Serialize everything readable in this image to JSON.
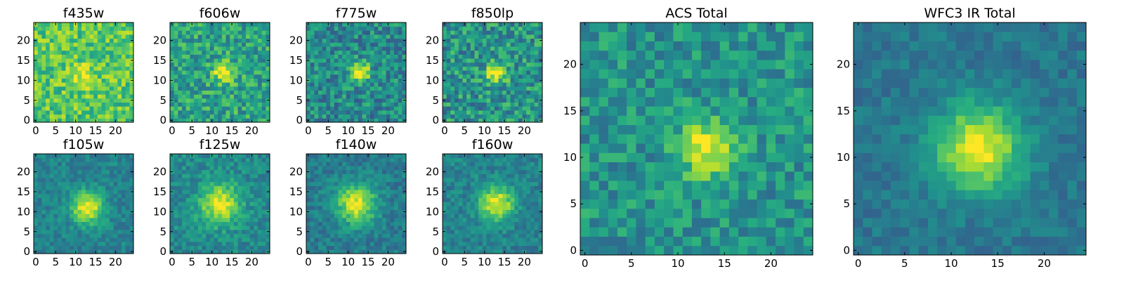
{
  "chart_data": {
    "type": "heatmap",
    "colormap": "viridis",
    "panels": [
      {
        "title": "f435w",
        "grid": 25,
        "xticks": [
          "0",
          "5",
          "10",
          "15",
          "20"
        ],
        "yticks": [
          "0",
          "5",
          "10",
          "15",
          "20"
        ],
        "source_center": [
          12,
          11
        ],
        "source_sigma": 2.2,
        "source_amp": 0.2,
        "background": 0.74,
        "noise": 0.18,
        "seed": 11
      },
      {
        "title": "f606w",
        "grid": 25,
        "xticks": [
          "0",
          "5",
          "10",
          "15",
          "20"
        ],
        "yticks": [
          "0",
          "5",
          "10",
          "15",
          "20"
        ],
        "source_center": [
          13,
          12
        ],
        "source_sigma": 1.8,
        "source_amp": 0.5,
        "background": 0.58,
        "noise": 0.2,
        "seed": 23
      },
      {
        "title": "f775w",
        "grid": 25,
        "xticks": [
          "0",
          "5",
          "10",
          "15",
          "20"
        ],
        "yticks": [
          "0",
          "5",
          "10",
          "15",
          "20"
        ],
        "source_center": [
          13,
          12
        ],
        "source_sigma": 1.7,
        "source_amp": 0.6,
        "background": 0.48,
        "noise": 0.2,
        "seed": 37
      },
      {
        "title": "f850lp",
        "grid": 25,
        "xticks": [
          "0",
          "5",
          "10",
          "15",
          "20"
        ],
        "yticks": [
          "0",
          "5",
          "10",
          "15",
          "20"
        ],
        "source_center": [
          13,
          12
        ],
        "source_sigma": 1.8,
        "source_amp": 0.5,
        "background": 0.52,
        "noise": 0.22,
        "seed": 41
      },
      {
        "title": "f105w",
        "grid": 25,
        "xticks": [
          "0",
          "5",
          "10",
          "15",
          "20"
        ],
        "yticks": [
          "0",
          "5",
          "10",
          "15",
          "20"
        ],
        "source_center": [
          13,
          11
        ],
        "source_sigma": 2.8,
        "source_amp": 0.55,
        "background": 0.45,
        "noise": 0.1,
        "seed": 53
      },
      {
        "title": "f125w",
        "grid": 25,
        "xticks": [
          "0",
          "5",
          "10",
          "15",
          "20"
        ],
        "yticks": [
          "0",
          "5",
          "10",
          "15",
          "20"
        ],
        "source_center": [
          12,
          12
        ],
        "source_sigma": 3.5,
        "source_amp": 0.5,
        "background": 0.48,
        "noise": 0.12,
        "seed": 67
      },
      {
        "title": "f140w",
        "grid": 25,
        "xticks": [
          "0",
          "5",
          "10",
          "15",
          "20"
        ],
        "yticks": [
          "0",
          "5",
          "10",
          "15",
          "20"
        ],
        "source_center": [
          12,
          12
        ],
        "source_sigma": 3.5,
        "source_amp": 0.55,
        "background": 0.42,
        "noise": 0.11,
        "seed": 71
      },
      {
        "title": "f160w",
        "grid": 25,
        "xticks": [
          "0",
          "5",
          "10",
          "15",
          "20"
        ],
        "yticks": [
          "0",
          "5",
          "10",
          "15",
          "20"
        ],
        "source_center": [
          13,
          12
        ],
        "source_sigma": 3.0,
        "source_amp": 0.55,
        "background": 0.45,
        "noise": 0.11,
        "seed": 83
      },
      {
        "title": "ACS Total",
        "grid": 25,
        "xticks": [
          "0",
          "5",
          "10",
          "15",
          "20"
        ],
        "yticks": [
          "0",
          "5",
          "10",
          "15",
          "20"
        ],
        "source_center": [
          13,
          11
        ],
        "source_sigma": 2.0,
        "source_amp": 0.5,
        "background": 0.52,
        "noise": 0.16,
        "seed": 97
      },
      {
        "title": "WFC3 IR Total",
        "grid": 25,
        "xticks": [
          "0",
          "5",
          "10",
          "15",
          "20"
        ],
        "yticks": [
          "0",
          "5",
          "10",
          "15",
          "20"
        ],
        "source_center": [
          13,
          11
        ],
        "source_sigma": 3.2,
        "source_amp": 0.6,
        "background": 0.4,
        "noise": 0.08,
        "seed": 101
      }
    ]
  }
}
